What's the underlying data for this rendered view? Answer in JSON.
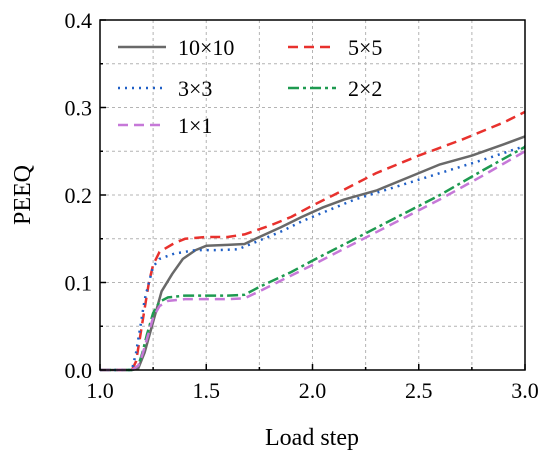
{
  "chart_data": {
    "type": "line",
    "title": "",
    "xlabel": "Load step",
    "ylabel": "PEEQ",
    "xlim": [
      1.0,
      3.0
    ],
    "ylim": [
      0.0,
      0.4
    ],
    "xticks": [
      1.0,
      1.5,
      2.0,
      2.5,
      3.0
    ],
    "xtick_labels": [
      "1.0",
      "1.5",
      "2.0",
      "2.5",
      "3.0"
    ],
    "yticks": [
      0.0,
      0.1,
      0.2,
      0.3,
      0.4
    ],
    "ytick_labels": [
      "0.0",
      "0.1",
      "0.2",
      "0.3",
      "0.4"
    ],
    "grid": true,
    "legend_position": "top-left",
    "series": [
      {
        "name": "10×10",
        "color": "#696969",
        "dash": "solid",
        "x": [
          1.0,
          1.12,
          1.15,
          1.18,
          1.21,
          1.25,
          1.29,
          1.34,
          1.39,
          1.45,
          1.5,
          1.6,
          1.68,
          1.75,
          1.85,
          1.95,
          2.05,
          2.15,
          2.3,
          2.45,
          2.6,
          2.75,
          2.9,
          3.0
        ],
        "y": [
          0.0,
          0.0,
          0.0,
          0.002,
          0.02,
          0.055,
          0.09,
          0.11,
          0.127,
          0.137,
          0.142,
          0.143,
          0.144,
          0.152,
          0.163,
          0.175,
          0.186,
          0.195,
          0.205,
          0.22,
          0.235,
          0.245,
          0.258,
          0.267
        ]
      },
      {
        "name": "5×5",
        "color": "#e8312d",
        "dash": "dashed",
        "x": [
          1.0,
          1.12,
          1.15,
          1.17,
          1.19,
          1.21,
          1.23,
          1.25,
          1.28,
          1.35,
          1.4,
          1.5,
          1.6,
          1.68,
          1.8,
          1.9,
          2.0,
          2.1,
          2.3,
          2.5,
          2.7,
          2.9,
          3.0
        ],
        "y": [
          0.0,
          0.0,
          0.0,
          0.01,
          0.04,
          0.07,
          0.1,
          0.12,
          0.135,
          0.145,
          0.15,
          0.152,
          0.152,
          0.155,
          0.165,
          0.175,
          0.188,
          0.2,
          0.225,
          0.245,
          0.263,
          0.283,
          0.295
        ]
      },
      {
        "name": "3×3",
        "color": "#1f5fc6",
        "dash": "dotted",
        "x": [
          1.0,
          1.12,
          1.15,
          1.17,
          1.19,
          1.21,
          1.23,
          1.25,
          1.28,
          1.35,
          1.45,
          1.55,
          1.65,
          1.75,
          1.85,
          1.95,
          2.05,
          2.2,
          2.4,
          2.6,
          2.8,
          3.0
        ],
        "y": [
          0.0,
          0.0,
          0.0,
          0.02,
          0.05,
          0.08,
          0.1,
          0.118,
          0.127,
          0.133,
          0.137,
          0.137,
          0.138,
          0.148,
          0.158,
          0.17,
          0.18,
          0.195,
          0.21,
          0.225,
          0.24,
          0.256
        ]
      },
      {
        "name": "2×2",
        "color": "#1e9a50",
        "dash": "dashdot",
        "x": [
          1.0,
          1.12,
          1.15,
          1.18,
          1.2,
          1.22,
          1.25,
          1.28,
          1.32,
          1.4,
          1.5,
          1.6,
          1.68,
          1.75,
          1.9,
          2.0,
          2.2,
          2.4,
          2.6,
          2.8,
          3.0
        ],
        "y": [
          0.0,
          0.0,
          0.0,
          0.005,
          0.02,
          0.04,
          0.065,
          0.078,
          0.083,
          0.085,
          0.085,
          0.085,
          0.086,
          0.095,
          0.112,
          0.125,
          0.15,
          0.175,
          0.2,
          0.228,
          0.255
        ]
      },
      {
        "name": "1×1",
        "color": "#c678d8",
        "dash": "dashed",
        "x": [
          1.0,
          1.12,
          1.15,
          1.18,
          1.2,
          1.22,
          1.25,
          1.28,
          1.32,
          1.4,
          1.5,
          1.6,
          1.68,
          1.75,
          1.9,
          2.0,
          2.2,
          2.4,
          2.6,
          2.8,
          3.0
        ],
        "y": [
          0.0,
          0.0,
          0.0,
          0.005,
          0.018,
          0.035,
          0.06,
          0.073,
          0.079,
          0.081,
          0.081,
          0.081,
          0.082,
          0.09,
          0.108,
          0.12,
          0.145,
          0.17,
          0.195,
          0.222,
          0.25
        ]
      }
    ]
  }
}
